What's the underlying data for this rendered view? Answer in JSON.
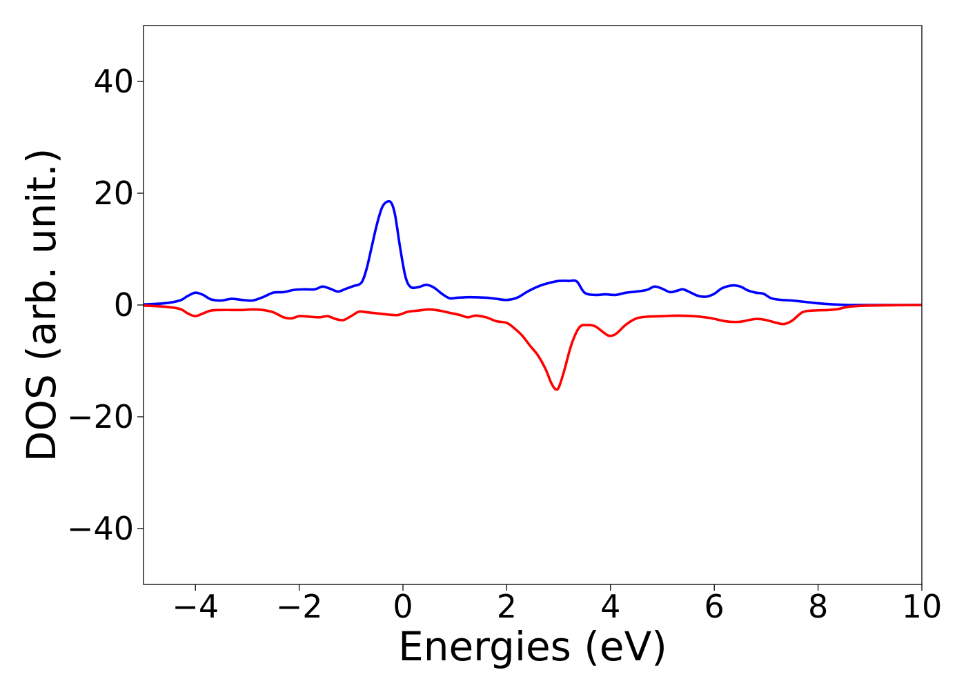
{
  "chart_data": {
    "type": "line",
    "title": "",
    "xlabel": "Energies (eV)",
    "ylabel": "DOS (arb. unit.)",
    "xlim": [
      -5,
      10
    ],
    "ylim": [
      -50,
      50
    ],
    "xticks": [
      -4,
      -2,
      0,
      2,
      4,
      6,
      8,
      10
    ],
    "yticks": [
      -40,
      -20,
      0,
      20,
      40
    ],
    "xtick_labels": [
      "−4",
      "−2",
      "0",
      "2",
      "4",
      "6",
      "8",
      "10"
    ],
    "ytick_labels": [
      "−40",
      "−20",
      "0",
      "20",
      "40"
    ],
    "grid": false,
    "legend": "none",
    "series": [
      {
        "color": "#0000ff",
        "x": [
          -5.0,
          -4.6,
          -4.3,
          -4.15,
          -4.0,
          -3.85,
          -3.7,
          -3.5,
          -3.3,
          -3.1,
          -2.9,
          -2.7,
          -2.5,
          -2.3,
          -2.1,
          -1.9,
          -1.7,
          -1.55,
          -1.4,
          -1.25,
          -1.1,
          -0.95,
          -0.8,
          -0.7,
          -0.6,
          -0.5,
          -0.4,
          -0.3,
          -0.22,
          -0.15,
          -0.05,
          0.05,
          0.15,
          0.3,
          0.45,
          0.6,
          0.75,
          0.9,
          1.05,
          1.3,
          1.6,
          1.8,
          2.0,
          2.2,
          2.4,
          2.6,
          2.8,
          3.0,
          3.2,
          3.35,
          3.5,
          3.7,
          3.9,
          4.1,
          4.3,
          4.5,
          4.7,
          4.85,
          5.0,
          5.15,
          5.3,
          5.4,
          5.55,
          5.7,
          5.85,
          6.0,
          6.15,
          6.35,
          6.5,
          6.65,
          6.8,
          6.95,
          7.1,
          7.3,
          7.5,
          7.7,
          8.0,
          8.3,
          8.6,
          9.0,
          10.0
        ],
        "y": [
          0.1,
          0.3,
          0.8,
          1.6,
          2.2,
          1.8,
          1.0,
          0.8,
          1.1,
          0.9,
          0.8,
          1.4,
          2.2,
          2.3,
          2.7,
          2.8,
          2.8,
          3.3,
          2.9,
          2.4,
          2.9,
          3.4,
          4.0,
          6.5,
          10.5,
          14.5,
          17.5,
          18.5,
          18.2,
          16.0,
          10.0,
          5.0,
          3.2,
          3.2,
          3.6,
          3.1,
          2.0,
          1.2,
          1.3,
          1.4,
          1.3,
          1.1,
          0.9,
          1.3,
          2.4,
          3.3,
          3.9,
          4.3,
          4.3,
          4.2,
          2.2,
          1.8,
          1.9,
          1.8,
          2.2,
          2.4,
          2.7,
          3.3,
          2.9,
          2.3,
          2.6,
          2.8,
          2.2,
          1.6,
          1.5,
          2.0,
          3.0,
          3.5,
          3.3,
          2.6,
          2.2,
          2.0,
          1.2,
          0.9,
          0.8,
          0.6,
          0.3,
          0.1,
          0.0,
          0.0,
          0.0
        ]
      },
      {
        "color": "#ff0000",
        "x": [
          -5.0,
          -4.6,
          -4.3,
          -4.15,
          -4.0,
          -3.85,
          -3.7,
          -3.5,
          -3.3,
          -3.1,
          -2.9,
          -2.7,
          -2.5,
          -2.3,
          -2.15,
          -2.0,
          -1.8,
          -1.6,
          -1.45,
          -1.3,
          -1.15,
          -1.0,
          -0.85,
          -0.7,
          -0.5,
          -0.3,
          -0.1,
          0.1,
          0.3,
          0.5,
          0.7,
          0.9,
          1.1,
          1.25,
          1.4,
          1.6,
          1.8,
          2.0,
          2.15,
          2.3,
          2.45,
          2.6,
          2.75,
          2.85,
          2.93,
          3.0,
          3.1,
          3.25,
          3.4,
          3.55,
          3.7,
          3.85,
          3.97,
          4.1,
          4.3,
          4.5,
          4.7,
          5.0,
          5.3,
          5.6,
          5.9,
          6.15,
          6.3,
          6.5,
          6.8,
          7.0,
          7.2,
          7.35,
          7.5,
          7.7,
          7.9,
          8.2,
          8.4,
          8.6,
          9.0,
          10.0
        ],
        "y": [
          -0.1,
          -0.3,
          -0.7,
          -1.5,
          -2.0,
          -1.5,
          -1.0,
          -0.9,
          -0.9,
          -0.9,
          -0.8,
          -0.9,
          -1.3,
          -2.2,
          -2.4,
          -2.0,
          -2.1,
          -2.2,
          -2.0,
          -2.5,
          -2.7,
          -2.0,
          -1.2,
          -1.3,
          -1.5,
          -1.7,
          -1.8,
          -1.2,
          -1.0,
          -0.8,
          -1.0,
          -1.4,
          -1.8,
          -2.2,
          -1.9,
          -2.2,
          -2.9,
          -3.2,
          -4.2,
          -5.5,
          -7.3,
          -9.0,
          -11.5,
          -13.8,
          -15.0,
          -14.8,
          -12.0,
          -7.0,
          -4.0,
          -3.6,
          -3.8,
          -4.8,
          -5.5,
          -5.2,
          -3.5,
          -2.4,
          -2.1,
          -2.0,
          -1.9,
          -2.0,
          -2.3,
          -2.8,
          -3.0,
          -3.0,
          -2.5,
          -2.7,
          -3.2,
          -3.4,
          -2.8,
          -1.3,
          -1.0,
          -0.9,
          -0.7,
          -0.3,
          -0.1,
          0.0
        ]
      }
    ]
  }
}
